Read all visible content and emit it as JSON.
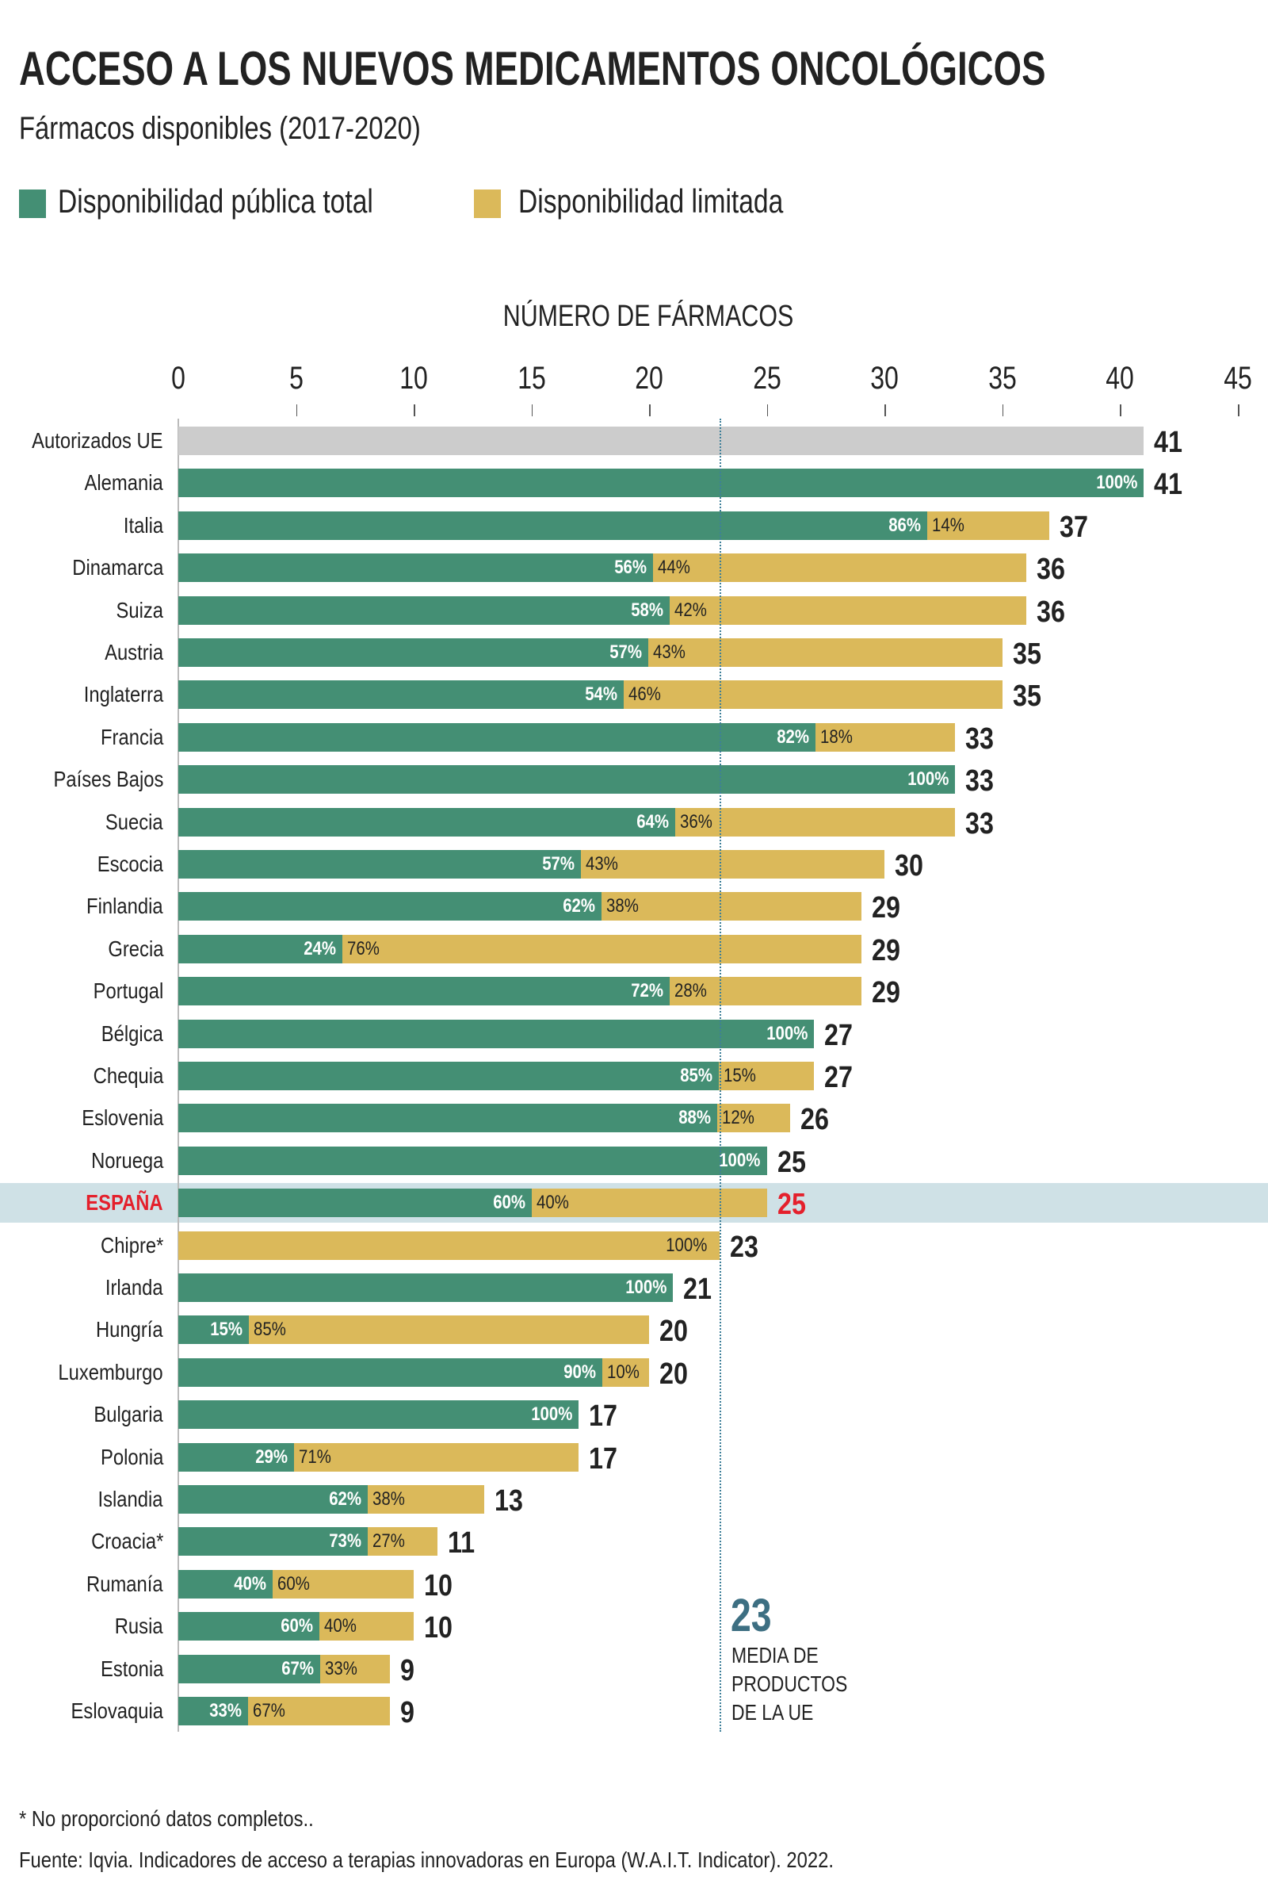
{
  "title": "ACCESO A LOS NUEVOS MEDICAMENTOS ONCOLÓGICOS",
  "subtitle": "Fármacos disponibles (2017-2020)",
  "footnote": "* No proporcionó datos completos..",
  "source": "Fuente: Iqvia. Indicadores de acceso a terapias innovadoras en Europa (W.A.I.T. Indicator). 2022.",
  "colors": {
    "public": "#448f74",
    "limited": "#dbb95a",
    "eu": "#cccccc",
    "highlight": "#e4202c",
    "highlight_band": "#cfe1e6",
    "mean": "#3d6f82"
  },
  "chart_data": {
    "type": "bar",
    "orientation": "horizontal",
    "stacked": true,
    "xlabel": "NÚMERO DE FÁRMACOS",
    "xlim": [
      0,
      45
    ],
    "xticks": [
      "0",
      "5",
      "10",
      "15",
      "20",
      "25",
      "30",
      "35",
      "40",
      "45"
    ],
    "legend_position": "top-left",
    "legend": [
      "Disponibilidad pública total",
      "Disponibilidad limitada"
    ],
    "mean": {
      "value": "23",
      "label_lines": [
        "MEDIA DE",
        "PRODUCTOS",
        "DE LA UE"
      ]
    },
    "highlight": "ESPAÑA",
    "rows": [
      {
        "label": "Autorizados UE",
        "total": 41,
        "eu": true
      },
      {
        "label": "Alemania",
        "total": 41,
        "public_pct": 100
      },
      {
        "label": "Italia",
        "total": 37,
        "public_pct": 86,
        "limited_pct": 14
      },
      {
        "label": "Dinamarca",
        "total": 36,
        "public_pct": 56,
        "limited_pct": 44
      },
      {
        "label": "Suiza",
        "total": 36,
        "public_pct": 58,
        "limited_pct": 42
      },
      {
        "label": "Austria",
        "total": 35,
        "public_pct": 57,
        "limited_pct": 43
      },
      {
        "label": "Inglaterra",
        "total": 35,
        "public_pct": 54,
        "limited_pct": 46
      },
      {
        "label": "Francia",
        "total": 33,
        "public_pct": 82,
        "limited_pct": 18
      },
      {
        "label": "Países Bajos",
        "total": 33,
        "public_pct": 100
      },
      {
        "label": "Suecia",
        "total": 33,
        "public_pct": 64,
        "limited_pct": 36
      },
      {
        "label": "Escocia",
        "total": 30,
        "public_pct": 57,
        "limited_pct": 43
      },
      {
        "label": "Finlandia",
        "total": 29,
        "public_pct": 62,
        "limited_pct": 38
      },
      {
        "label": "Grecia",
        "total": 29,
        "public_pct": 24,
        "limited_pct": 76
      },
      {
        "label": "Portugal",
        "total": 29,
        "public_pct": 72,
        "limited_pct": 28
      },
      {
        "label": "Bélgica",
        "total": 27,
        "public_pct": 100
      },
      {
        "label": "Chequia",
        "total": 27,
        "public_pct": 85,
        "limited_pct": 15
      },
      {
        "label": "Eslovenia",
        "total": 26,
        "public_pct": 88,
        "limited_pct": 12
      },
      {
        "label": "Noruega",
        "total": 25,
        "public_pct": 100
      },
      {
        "label": "ESPAÑA",
        "total": 25,
        "public_pct": 60,
        "limited_pct": 40
      },
      {
        "label": "Chipre*",
        "total": 23,
        "limited_pct": 100
      },
      {
        "label": "Irlanda",
        "total": 21,
        "public_pct": 100
      },
      {
        "label": "Hungría",
        "total": 20,
        "public_pct": 15,
        "limited_pct": 85
      },
      {
        "label": "Luxemburgo",
        "total": 20,
        "public_pct": 90,
        "limited_pct": 10
      },
      {
        "label": "Bulgaria",
        "total": 17,
        "public_pct": 100
      },
      {
        "label": "Polonia",
        "total": 17,
        "public_pct": 29,
        "limited_pct": 71
      },
      {
        "label": "Islandia",
        "total": 13,
        "public_pct": 62,
        "limited_pct": 38
      },
      {
        "label": "Croacia*",
        "total": 11,
        "public_pct": 73,
        "limited_pct": 27
      },
      {
        "label": "Rumanía",
        "total": 10,
        "public_pct": 40,
        "limited_pct": 60
      },
      {
        "label": "Rusia",
        "total": 10,
        "public_pct": 60,
        "limited_pct": 40
      },
      {
        "label": "Estonia",
        "total": 9,
        "public_pct": 67,
        "limited_pct": 33
      },
      {
        "label": "Eslovaquia",
        "total": 9,
        "public_pct": 33,
        "limited_pct": 67
      }
    ]
  }
}
